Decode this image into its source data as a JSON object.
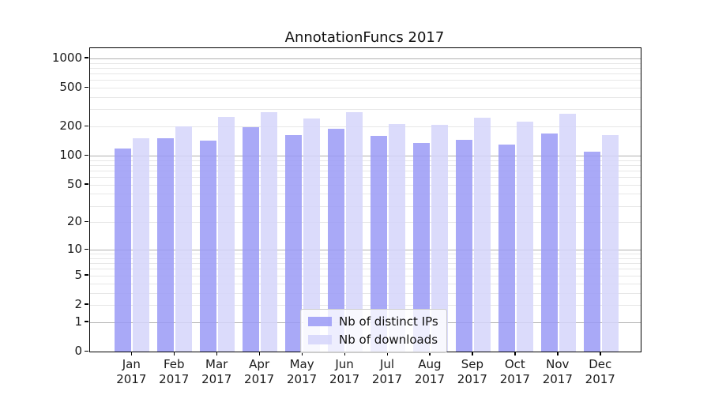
{
  "chart_data": {
    "type": "bar",
    "title": "AnnotationFuncs 2017",
    "yscale": "log1p",
    "grid": "both",
    "legend_position": "lower center",
    "x_ticks": [
      {
        "line1": "Jan",
        "line2": "2017"
      },
      {
        "line1": "Feb",
        "line2": "2017"
      },
      {
        "line1": "Mar",
        "line2": "2017"
      },
      {
        "line1": "Apr",
        "line2": "2017"
      },
      {
        "line1": "May",
        "line2": "2017"
      },
      {
        "line1": "Jun",
        "line2": "2017"
      },
      {
        "line1": "Jul",
        "line2": "2017"
      },
      {
        "line1": "Aug",
        "line2": "2017"
      },
      {
        "line1": "Sep",
        "line2": "2017"
      },
      {
        "line1": "Oct",
        "line2": "2017"
      },
      {
        "line1": "Nov",
        "line2": "2017"
      },
      {
        "line1": "Dec",
        "line2": "2017"
      }
    ],
    "y_ticks": [
      {
        "label": "1000",
        "value": 1000
      },
      {
        "label": "500",
        "value": 500
      },
      {
        "label": "200",
        "value": 200
      },
      {
        "label": "100",
        "value": 100
      },
      {
        "label": "50",
        "value": 50
      },
      {
        "label": "20",
        "value": 20
      },
      {
        "label": "10",
        "value": 10
      },
      {
        "label": "5",
        "value": 5
      },
      {
        "label": "2",
        "value": 2
      },
      {
        "label": "1",
        "value": 1
      },
      {
        "label": "0",
        "value": 0
      }
    ],
    "series": [
      {
        "name": "Nb of distinct IPs",
        "color": "rgba(154,154,246,0.85)",
        "values": [
          118,
          152,
          144,
          195,
          164,
          191,
          160,
          135,
          147,
          130,
          169,
          110
        ]
      },
      {
        "name": "Nb of downloads",
        "color": "rgba(213,213,250,0.85)",
        "values": [
          150,
          200,
          250,
          280,
          242,
          280,
          213,
          208,
          246,
          223,
          272,
          162
        ]
      }
    ]
  },
  "colors": {
    "grid_major": "#b0b0b0",
    "grid_minor": "#e7e7e7",
    "spine": "#000000",
    "legend_border": "#cccccc"
  }
}
